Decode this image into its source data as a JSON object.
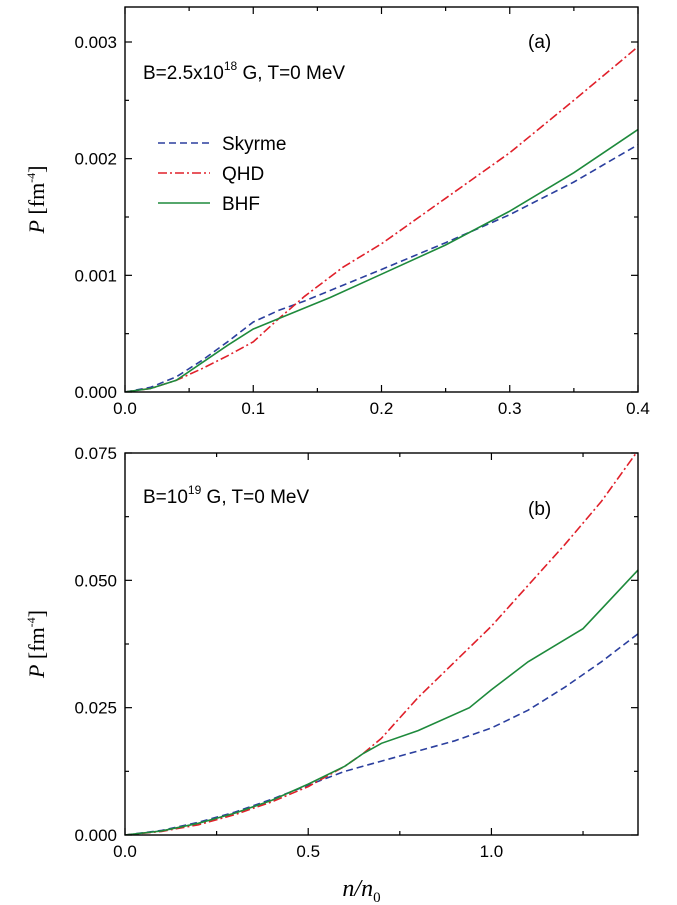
{
  "chart_data": [
    {
      "type": "line",
      "panel_label": "(a)",
      "annotation": {
        "main": "B=2.5x10",
        "sup": "18",
        "rest": " G, T=0 MeV"
      },
      "ylabel": {
        "var": "P",
        "unit": " [fm",
        "sup": "-4",
        "close": "]"
      },
      "xlim": [
        0.0,
        0.4
      ],
      "ylim": [
        0.0,
        0.0033
      ],
      "xticks": [
        0.0,
        0.1,
        0.2,
        0.3,
        0.4
      ],
      "xtick_labels": [
        "0.0",
        "0.1",
        "0.2",
        "0.3",
        "0.4"
      ],
      "yticks": [
        0.0,
        0.001,
        0.002,
        0.003
      ],
      "ytick_labels": [
        "0.000",
        "0.001",
        "0.002",
        "0.003"
      ],
      "legend": {
        "position": "upper-left"
      },
      "series": [
        {
          "name": "Skyrme",
          "color": "#2b3f9e",
          "style": "dashed",
          "x": [
            0,
            0.02,
            0.04,
            0.06,
            0.08,
            0.1,
            0.12,
            0.14,
            0.16,
            0.18,
            0.2,
            0.25,
            0.3,
            0.35,
            0.4
          ],
          "y": [
            0,
            4e-05,
            0.00013,
            0.00027,
            0.00043,
            0.0006,
            0.0007,
            0.00078,
            0.00087,
            0.00096,
            0.00105,
            0.00128,
            0.00152,
            0.0018,
            0.00212
          ]
        },
        {
          "name": "QHD",
          "color": "#e0202a",
          "style": "dashdot",
          "x": [
            0,
            0.02,
            0.04,
            0.06,
            0.08,
            0.1,
            0.12,
            0.14,
            0.17,
            0.2,
            0.25,
            0.3,
            0.35,
            0.4
          ],
          "y": [
            0,
            3e-05,
            0.0001,
            0.0002,
            0.00031,
            0.00043,
            0.00063,
            0.00082,
            0.00107,
            0.00127,
            0.00166,
            0.00205,
            0.0025,
            0.00296
          ]
        },
        {
          "name": "BHF",
          "color": "#1e8a3c",
          "style": "solid",
          "x": [
            0,
            0.02,
            0.04,
            0.06,
            0.08,
            0.1,
            0.12,
            0.16,
            0.2,
            0.25,
            0.3,
            0.35,
            0.4
          ],
          "y": [
            0,
            3e-05,
            0.0001,
            0.00025,
            0.0004,
            0.00054,
            0.00063,
            0.00081,
            0.00101,
            0.00126,
            0.00155,
            0.00188,
            0.00225
          ]
        }
      ]
    },
    {
      "type": "line",
      "panel_label": "(b)",
      "annotation": {
        "main": "B=10",
        "sup": "19",
        "rest": " G, T=0 MeV"
      },
      "ylabel": {
        "var": "P",
        "unit": " [fm",
        "sup": "-4",
        "close": "]"
      },
      "xlabel": {
        "n": "n/n",
        "sub": "0"
      },
      "xlim": [
        0.0,
        1.4
      ],
      "ylim": [
        0.0,
        0.075
      ],
      "xticks": [
        0.0,
        0.5,
        1.0
      ],
      "xtick_labels": [
        "0.0",
        "0.5",
        "1.0"
      ],
      "yticks": [
        0.0,
        0.025,
        0.05,
        0.075
      ],
      "ytick_labels": [
        "0.000",
        "0.025",
        "0.050",
        "0.075"
      ],
      "series": [
        {
          "name": "Skyrme",
          "color": "#2b3f9e",
          "style": "dashed",
          "x": [
            0,
            0.1,
            0.2,
            0.3,
            0.4,
            0.5,
            0.6,
            0.7,
            0.8,
            0.9,
            1.0,
            1.1,
            1.2,
            1.3,
            1.4
          ],
          "y": [
            0,
            0.0009,
            0.0025,
            0.0045,
            0.007,
            0.0098,
            0.0125,
            0.0145,
            0.0165,
            0.0185,
            0.021,
            0.0245,
            0.029,
            0.034,
            0.0395
          ]
        },
        {
          "name": "QHD",
          "color": "#e0202a",
          "style": "dashdot",
          "x": [
            0,
            0.1,
            0.2,
            0.3,
            0.4,
            0.5,
            0.6,
            0.65,
            0.7,
            0.8,
            0.9,
            1.0,
            1.1,
            1.2,
            1.3,
            1.4
          ],
          "y": [
            0,
            0.0007,
            0.002,
            0.004,
            0.0065,
            0.0095,
            0.0135,
            0.016,
            0.019,
            0.027,
            0.034,
            0.041,
            0.049,
            0.057,
            0.0655,
            0.0755
          ]
        },
        {
          "name": "BHF",
          "color": "#1e8a3c",
          "style": "solid",
          "x": [
            0,
            0.1,
            0.2,
            0.3,
            0.4,
            0.5,
            0.6,
            0.65,
            0.7,
            0.8,
            0.94,
            1.0,
            1.1,
            1.25,
            1.4
          ],
          "y": [
            0,
            0.0008,
            0.0023,
            0.0043,
            0.0068,
            0.01,
            0.0135,
            0.016,
            0.018,
            0.0205,
            0.025,
            0.0285,
            0.034,
            0.0405,
            0.052
          ]
        }
      ]
    }
  ]
}
